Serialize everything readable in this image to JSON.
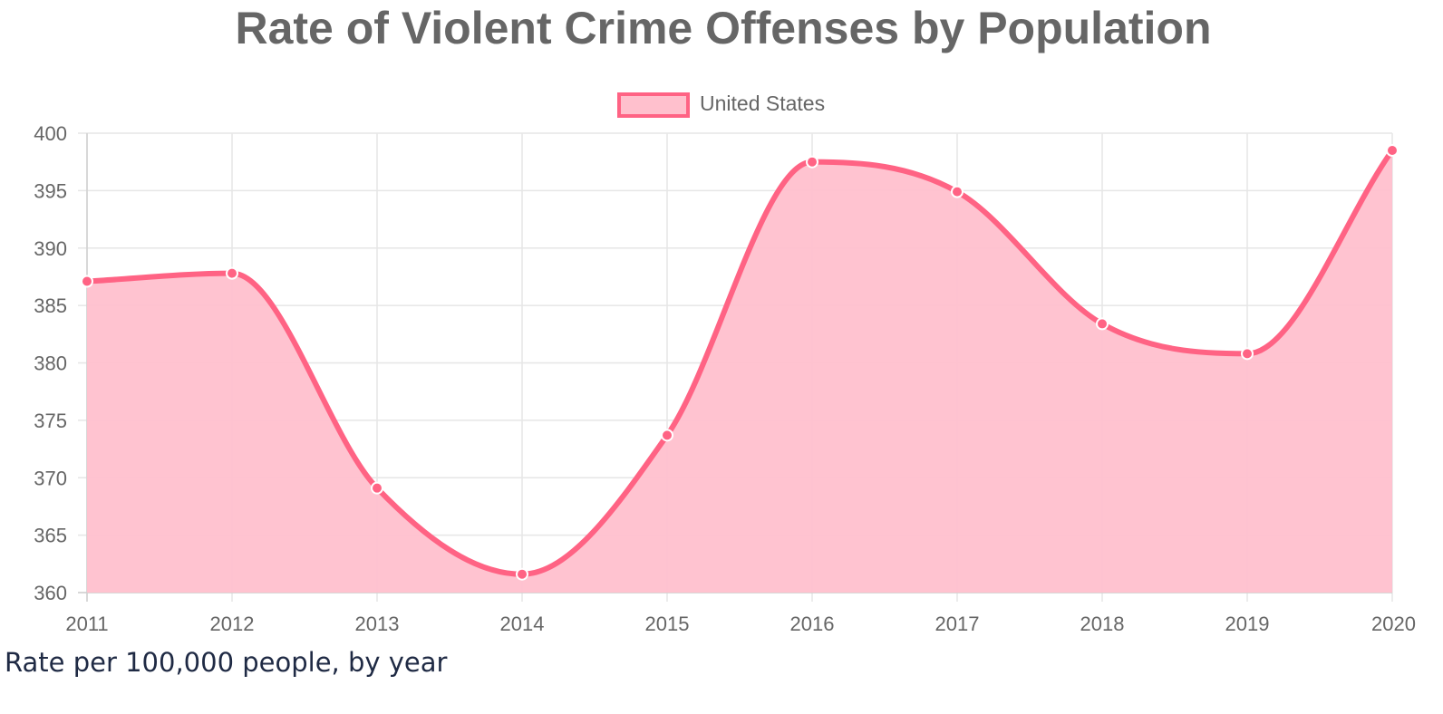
{
  "chart_data": {
    "type": "area",
    "title": "Rate of Violent Crime Offenses by Population",
    "legend": {
      "label": "United States",
      "position": "top-center"
    },
    "x": [
      "2011",
      "2012",
      "2013",
      "2014",
      "2015",
      "2016",
      "2017",
      "2018",
      "2019",
      "2020"
    ],
    "series": [
      {
        "name": "United States",
        "values": [
          387.1,
          387.8,
          369.1,
          361.6,
          373.7,
          397.5,
          394.9,
          383.4,
          380.8,
          398.5
        ]
      }
    ],
    "ylim": [
      360,
      400
    ],
    "yticks": [
      "360",
      "365",
      "370",
      "375",
      "380",
      "385",
      "390",
      "395",
      "400"
    ],
    "grid": true,
    "xlabel": "",
    "ylabel": "",
    "colors": {
      "line": "#ff6384",
      "fill": "#ffc0cd",
      "grid": "#e6e6e6",
      "text": "#666666"
    }
  },
  "caption": "Rate per 100,000 people, by year"
}
